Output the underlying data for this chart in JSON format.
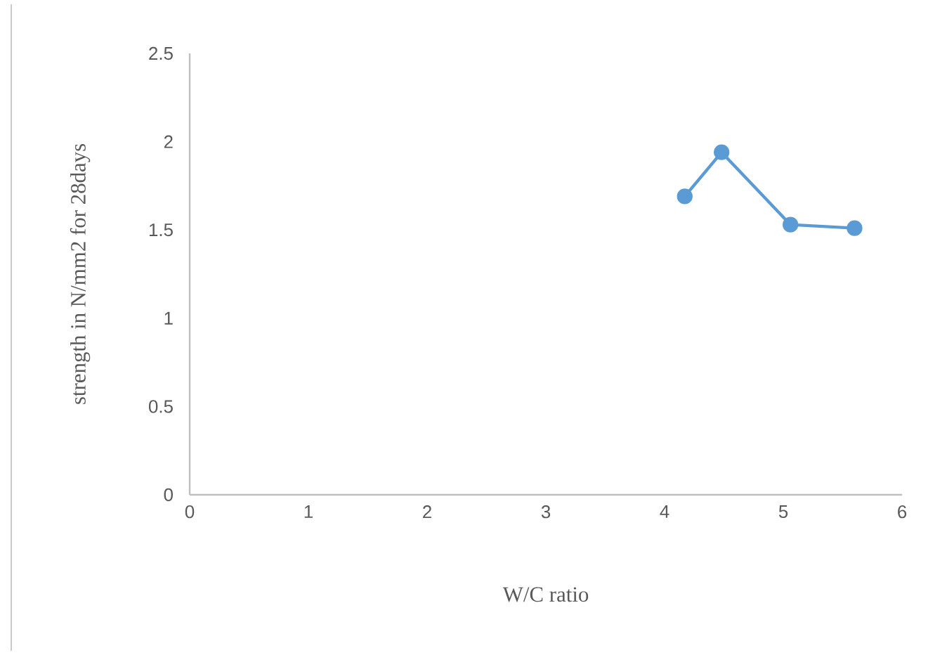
{
  "chart_data": {
    "type": "line",
    "xlabel": "W/C ratio",
    "ylabel": "strength in N/mm2 for 28days",
    "series": [
      {
        "color": "#5b9bd5",
        "x": [
          4.17,
          4.48,
          5.06,
          5.6
        ],
        "values": [
          1.69,
          1.94,
          1.53,
          1.51
        ]
      }
    ],
    "xlim": [
      0,
      6
    ],
    "xticks": [
      0,
      1,
      2,
      3,
      4,
      5,
      6
    ],
    "ylim": [
      0,
      2.5
    ],
    "yticks": [
      0,
      0.5,
      1,
      1.5,
      2,
      2.5
    ],
    "grid": false,
    "marker": "circle",
    "line_style": "solid"
  }
}
